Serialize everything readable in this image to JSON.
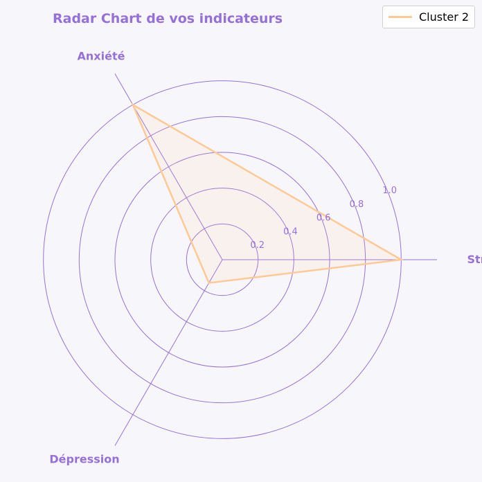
{
  "chart_data": {
    "type": "radar",
    "title": "Radar Chart de vos indicateurs",
    "categories": [
      "Stress",
      "Anxiété",
      "Dépression"
    ],
    "series": [
      {
        "name": "Cluster 2",
        "values": [
          1.0,
          1.0,
          0.15
        ],
        "color": "#ffc994"
      }
    ],
    "radial_ticks": [
      0.2,
      0.4,
      0.6,
      0.8,
      1.0
    ],
    "radial_tick_labels": [
      "0.2",
      "0.4",
      "0.6",
      "0.8",
      "1.0"
    ],
    "rlim": [
      0,
      1.2
    ],
    "grid": true,
    "legend_position": "top-right",
    "accent_color": "#9670d9"
  }
}
